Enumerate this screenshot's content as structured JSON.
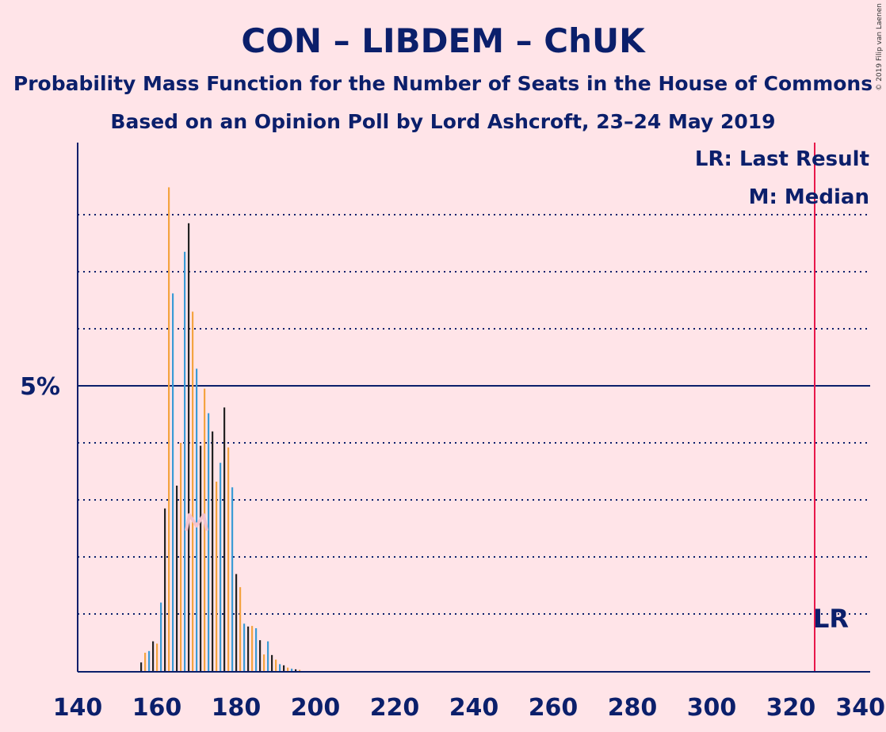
{
  "chart_data": {
    "type": "bar",
    "title": "CON – LIBDEM – ChUK",
    "subtitle_1": "Probability Mass Function for the Number of Seats in the House of Commons",
    "subtitle_2": "Based on an Opinion Poll by Lord Ashcroft, 23–24 May 2019",
    "copyright": "© 2019 Filip van Laenen",
    "xlim": [
      140,
      340
    ],
    "ylim": [
      0,
      9
    ],
    "x_ticks": [
      140,
      160,
      180,
      200,
      220,
      240,
      260,
      280,
      300,
      320,
      340
    ],
    "y_major_tick": 5,
    "y_major_label": "5%",
    "y_dotted_gridlines": [
      1,
      2,
      3,
      4,
      6,
      7,
      8
    ],
    "last_result": 326,
    "last_result_label": "LR",
    "median": 170,
    "median_label": "M",
    "legend": {
      "last_result": "LR: Last Result",
      "median": "M: Median"
    },
    "colors": {
      "background": "#FFE4E8",
      "text": "#0B1F6B",
      "axis": "#0B1F6B",
      "bar_dark": "#222222",
      "bar_orange": "#F4A340",
      "bar_blue": "#3A9BD6",
      "last_result_line": "#E8174A",
      "median_marker": "#F4C2CC"
    },
    "series": [
      {
        "x": [
          156,
          157,
          158,
          159,
          160,
          161,
          162,
          163,
          164,
          165,
          166,
          167,
          168,
          169,
          170,
          171,
          172,
          173,
          174,
          175,
          176,
          177,
          178,
          179,
          180,
          181,
          182,
          183,
          184,
          185,
          186,
          187,
          188,
          189,
          190,
          191,
          192,
          193,
          194,
          195,
          196
        ],
        "values": [
          0.15,
          0.32,
          0.35,
          0.52,
          0.48,
          1.2,
          2.85,
          8.48,
          6.62,
          3.25,
          4.0,
          7.35,
          7.85,
          6.3,
          5.3,
          3.95,
          4.95,
          4.52,
          4.2,
          3.32,
          3.65,
          4.62,
          3.92,
          3.22,
          1.7,
          1.47,
          0.83,
          0.78,
          0.79,
          0.75,
          0.54,
          0.29,
          0.52,
          0.28,
          0.2,
          0.12,
          0.1,
          0.06,
          0.04,
          0.03,
          0.02
        ]
      }
    ]
  }
}
